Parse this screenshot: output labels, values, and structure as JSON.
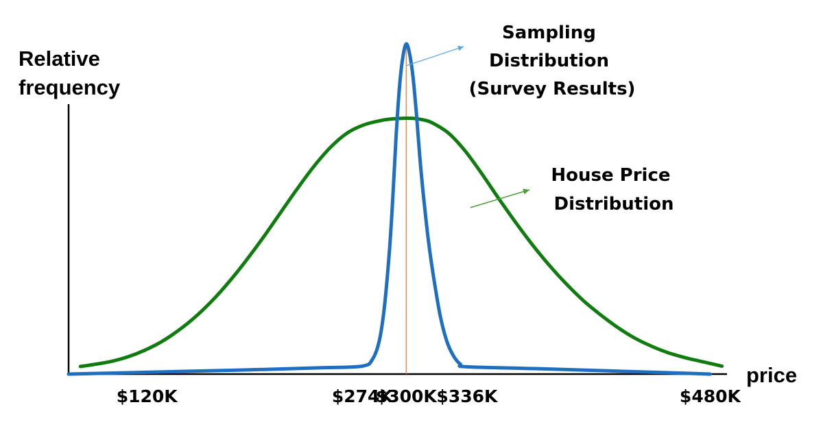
{
  "chart_data": {
    "type": "line",
    "title": "",
    "xlabel": "price",
    "ylabel": [
      "Relative",
      "frequency"
    ],
    "xlim": [
      100,
      490
    ],
    "ylim": [
      0,
      1.05
    ],
    "grid": false,
    "legend": "none",
    "x_ticks": [
      {
        "value": 120,
        "label": "$120K"
      },
      {
        "value": 274,
        "label": "$274K"
      },
      {
        "value": 300,
        "label": "$300K"
      },
      {
        "value": 336,
        "label": "$336K"
      },
      {
        "value": 480,
        "label": "$480K"
      }
    ],
    "series": [
      {
        "key": "house",
        "color": "#107c10",
        "x": [
          107,
          115,
          125,
          135,
          145,
          155,
          165,
          175,
          185,
          195,
          205,
          215,
          225,
          235,
          245,
          255,
          265,
          275,
          285,
          290,
          295,
          300,
          305,
          310,
          315,
          325,
          335,
          345,
          355,
          365,
          375,
          385,
          395,
          405,
          415,
          425,
          435,
          445,
          455,
          465,
          475,
          487
        ],
        "y": [
          0.023,
          0.029,
          0.038,
          0.052,
          0.072,
          0.098,
          0.132,
          0.173,
          0.222,
          0.279,
          0.343,
          0.412,
          0.485,
          0.558,
          0.627,
          0.686,
          0.73,
          0.755,
          0.768,
          0.772,
          0.774,
          0.775,
          0.774,
          0.77,
          0.762,
          0.73,
          0.675,
          0.605,
          0.53,
          0.458,
          0.39,
          0.328,
          0.272,
          0.222,
          0.18,
          0.142,
          0.11,
          0.085,
          0.065,
          0.05,
          0.038,
          0.024
        ]
      },
      {
        "key": "sampling",
        "color": "#1f6fc0",
        "x": [
          100,
          150,
          200,
          250,
          274,
          280,
          284,
          287,
          290,
          292,
          294,
          296,
          298,
          300,
          302,
          304,
          306,
          308,
          310,
          313,
          316,
          320,
          324,
          328,
          332,
          336,
          380,
          430,
          480
        ],
        "y": [
          0.0,
          0.006,
          0.012,
          0.019,
          0.024,
          0.045,
          0.1,
          0.2,
          0.37,
          0.53,
          0.72,
          0.87,
          0.96,
          1.0,
          0.97,
          0.9,
          0.79,
          0.66,
          0.55,
          0.41,
          0.3,
          0.18,
          0.1,
          0.055,
          0.03,
          0.022,
          0.016,
          0.008,
          0.0
        ]
      }
    ],
    "reference_line": {
      "x": 300,
      "color": "#f0883c"
    },
    "annotations": [
      {
        "series": "sampling",
        "lines": [
          "Sampling",
          "Distribution",
          "(Survey Results)"
        ],
        "arrow_color": "#5aa6e6"
      },
      {
        "series": "house",
        "lines": [
          "House Price",
          "Distribution"
        ],
        "arrow_color": "#4d9d3a"
      }
    ]
  }
}
